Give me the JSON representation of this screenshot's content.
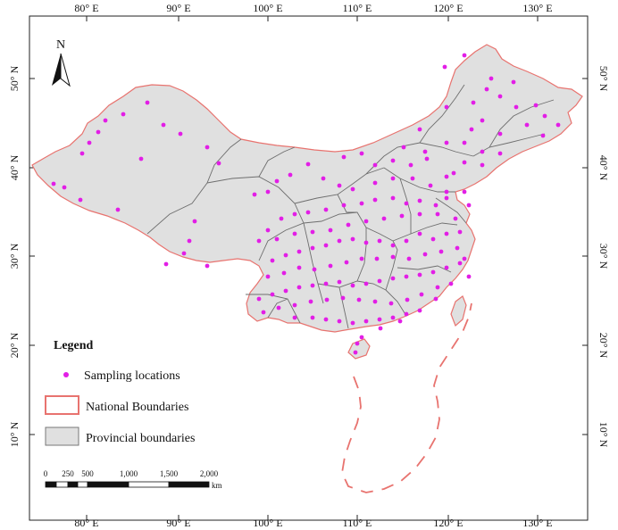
{
  "map": {
    "top_ticks": [
      "80° E",
      "90° E",
      "100° E",
      "110° E",
      "120° E",
      "130° E"
    ],
    "bottom_ticks": [
      "80° E",
      "90° E",
      "100° E",
      "110° E",
      "120° E",
      "130° E"
    ],
    "left_ticks": [
      "50° N",
      "40° N",
      "30° N",
      "20° N",
      "10° N"
    ],
    "right_ticks": [
      "50° N",
      "40° N",
      "30° N",
      "20° N",
      "10° N"
    ],
    "north_label": "N",
    "colors": {
      "land": "#e0e0e0",
      "national_boundary": "#e8736f",
      "provincial_boundary": "#6e6e6e",
      "sampling_point": "#e21ee6"
    }
  },
  "legend": {
    "title": "Legend",
    "items": [
      {
        "label": "Sampling locations",
        "symbol": "magenta-dot"
      },
      {
        "label": "National Boundaries",
        "symbol": "red-outline-box"
      },
      {
        "label": "Provincial boundaries",
        "symbol": "gray-filled-box"
      }
    ]
  },
  "scale_bar": {
    "labels": [
      "0",
      "250",
      "500",
      "1,000",
      "1,500",
      "2,000"
    ],
    "unit": "km"
  }
}
